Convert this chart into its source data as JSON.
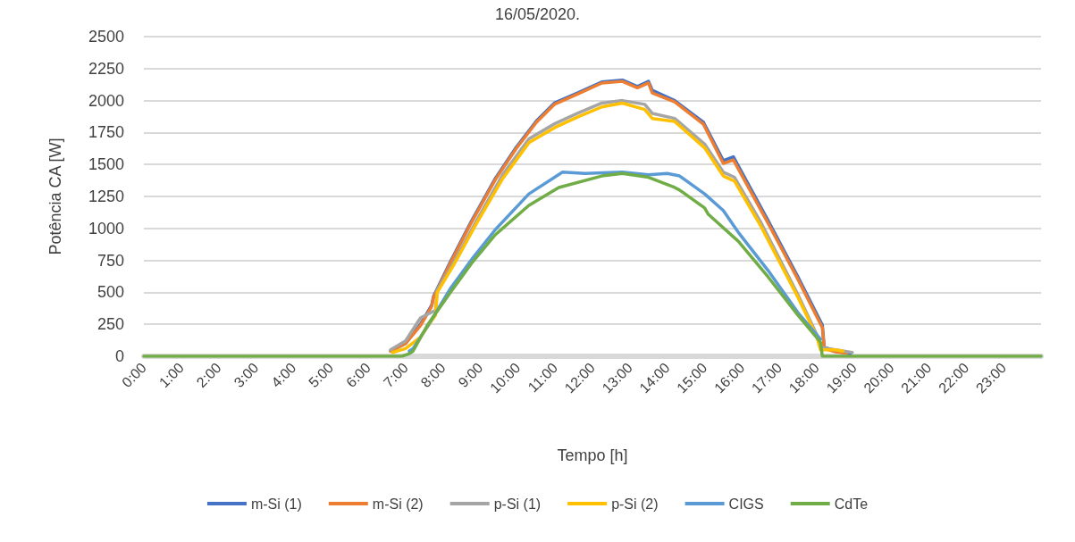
{
  "chart_data": {
    "type": "line",
    "title": "16/05/2020.",
    "xlabel": "Tempo [h]",
    "ylabel": "Potência CA [W]",
    "xlim": [
      0,
      24
    ],
    "xticks": [
      {
        "value": 0,
        "label": "0:00"
      },
      {
        "value": 1,
        "label": "1:00"
      },
      {
        "value": 2,
        "label": "2:00"
      },
      {
        "value": 3,
        "label": "3:00"
      },
      {
        "value": 4,
        "label": "4:00"
      },
      {
        "value": 5,
        "label": "5:00"
      },
      {
        "value": 6,
        "label": "6:00"
      },
      {
        "value": 7,
        "label": "7:00"
      },
      {
        "value": 8,
        "label": "8:00"
      },
      {
        "value": 9,
        "label": "9:00"
      },
      {
        "value": 10,
        "label": "10:00"
      },
      {
        "value": 11,
        "label": "11:00"
      },
      {
        "value": 12,
        "label": "12:00"
      },
      {
        "value": 13,
        "label": "13:00"
      },
      {
        "value": 14,
        "label": "14:00"
      },
      {
        "value": 15,
        "label": "15:00"
      },
      {
        "value": 16,
        "label": "16:00"
      },
      {
        "value": 17,
        "label": "17:00"
      },
      {
        "value": 18,
        "label": "18:00"
      },
      {
        "value": 19,
        "label": "19:00"
      },
      {
        "value": 20,
        "label": "20:00"
      },
      {
        "value": 21,
        "label": "21:00"
      },
      {
        "value": 22,
        "label": "22:00"
      },
      {
        "value": 23,
        "label": "23:00"
      }
    ],
    "ylim": [
      0,
      2500
    ],
    "yticks": [
      0,
      250,
      500,
      750,
      1000,
      1250,
      1500,
      1750,
      2000,
      2250,
      2500
    ],
    "grid": "y",
    "legend": "bottom",
    "marker": "none",
    "line_style": "solid",
    "series": [
      {
        "name": "m-Si (1)",
        "color": "#4472c4",
        "x": [
          6.6,
          7.0,
          7.4,
          7.7,
          7.75,
          8.2,
          8.75,
          9.4,
          9.95,
          10.5,
          10.98,
          11.6,
          12.25,
          12.8,
          13.2,
          13.5,
          13.6,
          14.2,
          14.97,
          15.5,
          15.77,
          16.7,
          17.5,
          18.15,
          18.2,
          18.5,
          18.9
        ],
        "values": [
          40,
          100,
          250,
          400,
          470,
          740,
          1050,
          1390,
          1630,
          1840,
          1980,
          2060,
          2145,
          2160,
          2110,
          2150,
          2080,
          2000,
          1830,
          1530,
          1560,
          1060,
          620,
          245,
          70,
          40,
          20
        ]
      },
      {
        "name": "m-Si (2)",
        "color": "#ed7d31",
        "x": [
          6.6,
          7.0,
          7.4,
          7.7,
          7.75,
          8.2,
          8.75,
          9.4,
          9.95,
          10.5,
          10.98,
          11.6,
          12.25,
          12.8,
          13.2,
          13.5,
          13.6,
          14.2,
          14.97,
          15.5,
          15.77,
          16.7,
          17.5,
          18.15,
          18.2,
          18.5,
          18.8
        ],
        "values": [
          40,
          100,
          240,
          391,
          461,
          730,
          1040,
          1380,
          1620,
          1830,
          1970,
          2050,
          2137,
          2150,
          2100,
          2137,
          2060,
          1990,
          1815,
          1508,
          1536,
          1040,
          600,
          223,
          60,
          35,
          25
        ]
      },
      {
        "name": "p-Si (1)",
        "color": "#a5a5a5",
        "x": [
          6.6,
          7.0,
          7.4,
          7.8,
          7.85,
          8.3,
          8.9,
          9.6,
          10.3,
          11.0,
          11.6,
          12.25,
          12.8,
          13.4,
          13.6,
          14.2,
          15.0,
          15.5,
          15.8,
          16.5,
          17.5,
          18.0,
          18.1,
          18.5,
          18.95
        ],
        "values": [
          50,
          120,
          300,
          360,
          520,
          740,
          1060,
          1420,
          1700,
          1820,
          1900,
          1980,
          2000,
          1970,
          1900,
          1860,
          1660,
          1440,
          1400,
          1050,
          480,
          170,
          70,
          50,
          30
        ]
      },
      {
        "name": "p-Si (2)",
        "color": "#ffc000",
        "x": [
          6.65,
          7.0,
          7.4,
          7.8,
          7.85,
          8.3,
          8.9,
          9.6,
          10.3,
          11.0,
          11.6,
          12.25,
          12.8,
          13.4,
          13.6,
          14.2,
          15.0,
          15.5,
          15.8,
          16.5,
          17.5,
          18.0,
          18.1,
          18.5,
          18.7
        ],
        "values": [
          30,
          60,
          150,
          321,
          500,
          720,
          1040,
          1390,
          1670,
          1790,
          1870,
          1950,
          1980,
          1930,
          1860,
          1836,
          1630,
          1410,
          1370,
          1020,
          460,
          154,
          50,
          50,
          40
        ]
      },
      {
        "name": "CIGS",
        "color": "#5b9bd5",
        "x": [
          7.1,
          7.2,
          7.6,
          8.2,
          8.8,
          9.4,
          10.3,
          11.2,
          11.8,
          12.8,
          13.5,
          14.0,
          14.33,
          15.0,
          15.5,
          15.9,
          16.7,
          17.5,
          18.1
        ],
        "values": [
          40,
          60,
          240,
          530,
          770,
          990,
          1270,
          1440,
          1430,
          1440,
          1420,
          1430,
          1410,
          1270,
          1140,
          970,
          670,
          340,
          133
        ]
      },
      {
        "name": "CdTe",
        "color": "#70ad47",
        "x": [
          0,
          6.9,
          7.1,
          7.2,
          7.6,
          8.2,
          8.8,
          9.4,
          10.3,
          11.1,
          12.25,
          12.8,
          13.5,
          14.2,
          14.33,
          15.0,
          15.1,
          15.9,
          16.7,
          17.5,
          18.1,
          18.15,
          24
        ],
        "values": [
          0,
          0,
          20,
          40,
          250,
          500,
          740,
          950,
          1180,
          1320,
          1410,
          1430,
          1400,
          1320,
          1300,
          1160,
          1110,
          900,
          620,
          320,
          110,
          0,
          0
        ]
      }
    ]
  }
}
